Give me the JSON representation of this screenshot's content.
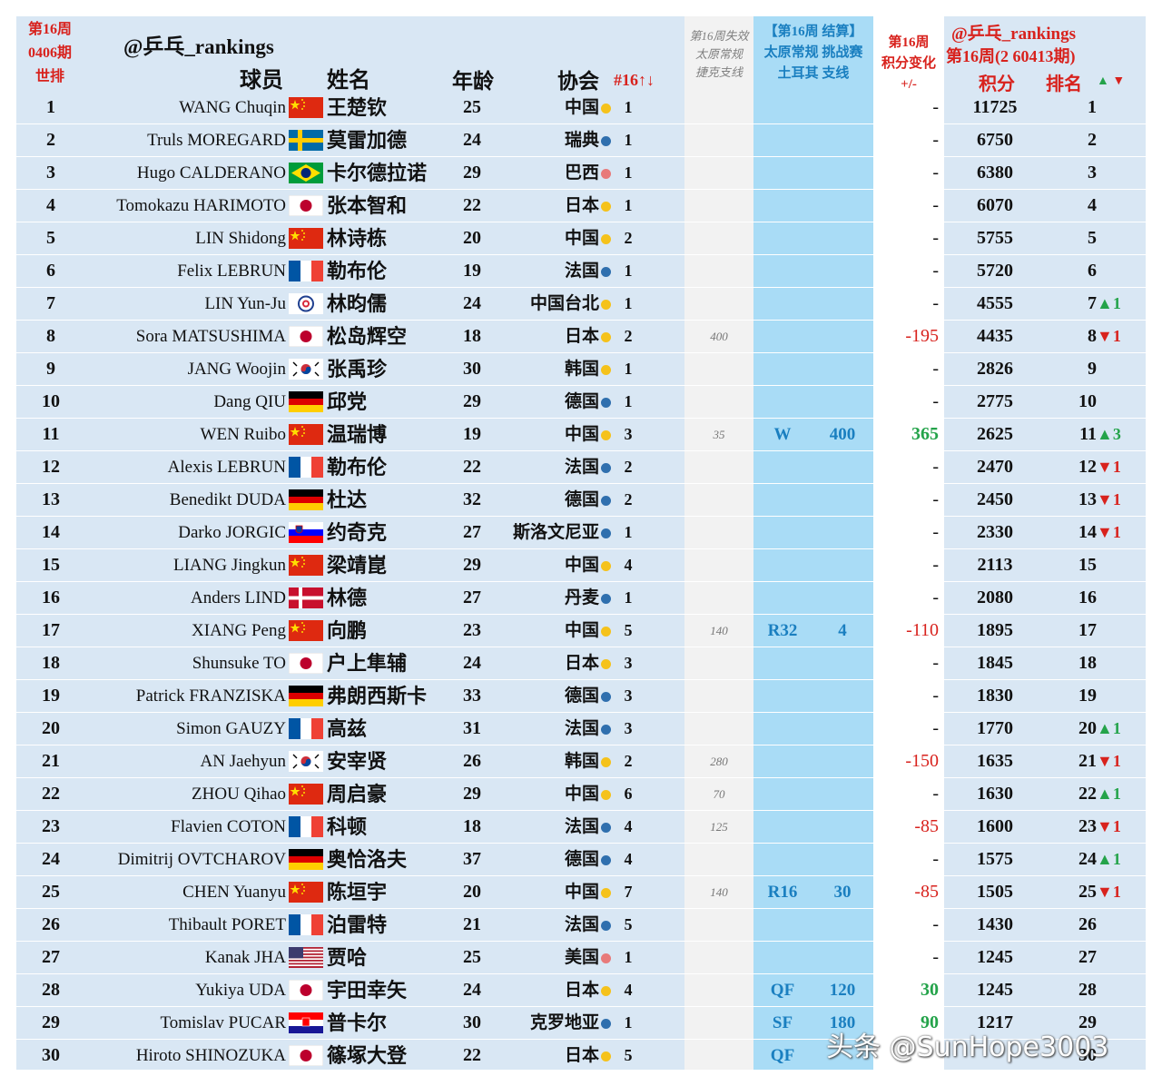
{
  "header": {
    "week_label": "第16周",
    "edition_label": "0406期",
    "world_rank_label": "世排",
    "brand": "@乒乓_rankings",
    "player_label": "球员",
    "name_label": "姓名",
    "age_label": "年龄",
    "assoc_label": "协会",
    "count_label": "#16↑↓",
    "lost_label_1": "第16周失效",
    "lost_label_2": "太原常规",
    "lost_label_3": "捷克支线",
    "taiyuan_label_1": "【第16周 结算】",
    "taiyuan_label_2": "太原常规 挑战赛",
    "taiyuan_label_3": "土耳其 支线",
    "change_label_1": "第16周",
    "change_label_2": "积分变化",
    "change_label_3": "+/-",
    "right_brand": "@乒乓_rankings",
    "right_edition": "第16周(2 60413期)",
    "points_label": "积分",
    "rank_label": "排名",
    "updown_label": "▲▼"
  },
  "colors": {
    "asia": "#f5c21b",
    "europe": "#2f6fae",
    "americas": "#e87a7a"
  },
  "rows": [
    {
      "rank": "1",
      "ename": "WANG Chuqin",
      "flag": "cn-flag-icon",
      "cname": "王楚钦",
      "age": "25",
      "assoc": "中国",
      "dot": "asia",
      "count": "1",
      "lost": "",
      "round": "",
      "tpts": "",
      "change": "-",
      "ctype": "",
      "points": "11725",
      "newrank": "1",
      "move": "",
      "mtype": ""
    },
    {
      "rank": "2",
      "ename": "Truls MOREGARD",
      "flag": "se-flag-icon",
      "cname": "莫雷加德",
      "age": "24",
      "assoc": "瑞典",
      "dot": "europe",
      "count": "1",
      "lost": "",
      "round": "",
      "tpts": "",
      "change": "-",
      "ctype": "",
      "points": "6750",
      "newrank": "2",
      "move": "",
      "mtype": ""
    },
    {
      "rank": "3",
      "ename": "Hugo CALDERANO",
      "flag": "br-flag-icon",
      "cname": "卡尔德拉诺",
      "age": "29",
      "assoc": "巴西",
      "dot": "americas",
      "count": "1",
      "lost": "",
      "round": "",
      "tpts": "",
      "change": "-",
      "ctype": "",
      "points": "6380",
      "newrank": "3",
      "move": "",
      "mtype": ""
    },
    {
      "rank": "4",
      "ename": "Tomokazu HARIMOTO",
      "flag": "jp-flag-icon",
      "cname": "张本智和",
      "age": "22",
      "assoc": "日本",
      "dot": "asia",
      "count": "1",
      "lost": "",
      "round": "",
      "tpts": "",
      "change": "-",
      "ctype": "",
      "points": "6070",
      "newrank": "4",
      "move": "",
      "mtype": ""
    },
    {
      "rank": "5",
      "ename": "LIN Shidong",
      "flag": "cn-flag-icon",
      "cname": "林诗栋",
      "age": "20",
      "assoc": "中国",
      "dot": "asia",
      "count": "2",
      "lost": "",
      "round": "",
      "tpts": "",
      "change": "-",
      "ctype": "",
      "points": "5755",
      "newrank": "5",
      "move": "",
      "mtype": ""
    },
    {
      "rank": "6",
      "ename": "Felix LEBRUN",
      "flag": "fr-flag-icon",
      "cname": "勒布伦",
      "age": "19",
      "assoc": "法国",
      "dot": "europe",
      "count": "1",
      "lost": "",
      "round": "",
      "tpts": "",
      "change": "-",
      "ctype": "",
      "points": "5720",
      "newrank": "6",
      "move": "",
      "mtype": ""
    },
    {
      "rank": "7",
      "ename": "LIN Yun-Ju",
      "flag": "tpe-flag-icon",
      "cname": "林昀儒",
      "age": "24",
      "assoc": "中国台北",
      "dot": "asia",
      "count": "1",
      "lost": "",
      "round": "",
      "tpts": "",
      "change": "-",
      "ctype": "",
      "points": "4555",
      "newrank": "7",
      "move": "▲1",
      "mtype": "up"
    },
    {
      "rank": "8",
      "ename": "Sora MATSUSHIMA",
      "flag": "jp-flag-icon",
      "cname": "松岛辉空",
      "age": "18",
      "assoc": "日本",
      "dot": "asia",
      "count": "2",
      "lost": "400",
      "round": "",
      "tpts": "",
      "change": "-195",
      "ctype": "neg",
      "points": "4435",
      "newrank": "8",
      "move": "▼1",
      "mtype": "down"
    },
    {
      "rank": "9",
      "ename": "JANG Woojin",
      "flag": "kr-flag-icon",
      "cname": "张禹珍",
      "age": "30",
      "assoc": "韩国",
      "dot": "asia",
      "count": "1",
      "lost": "",
      "round": "",
      "tpts": "",
      "change": "-",
      "ctype": "",
      "points": "2826",
      "newrank": "9",
      "move": "",
      "mtype": ""
    },
    {
      "rank": "10",
      "ename": "Dang QIU",
      "flag": "de-flag-icon",
      "cname": "邱党",
      "age": "29",
      "assoc": "德国",
      "dot": "europe",
      "count": "1",
      "lost": "",
      "round": "",
      "tpts": "",
      "change": "-",
      "ctype": "",
      "points": "2775",
      "newrank": "10",
      "move": "",
      "mtype": ""
    },
    {
      "rank": "11",
      "ename": "WEN Ruibo",
      "flag": "cn-flag-icon",
      "cname": "温瑞博",
      "age": "19",
      "assoc": "中国",
      "dot": "asia",
      "count": "3",
      "lost": "35",
      "round": "W",
      "tpts": "400",
      "change": "365",
      "ctype": "pos",
      "points": "2625",
      "newrank": "11",
      "move": "▲3",
      "mtype": "up"
    },
    {
      "rank": "12",
      "ename": "Alexis LEBRUN",
      "flag": "fr-flag-icon",
      "cname": "勒布伦",
      "age": "22",
      "assoc": "法国",
      "dot": "europe",
      "count": "2",
      "lost": "",
      "round": "",
      "tpts": "",
      "change": "-",
      "ctype": "",
      "points": "2470",
      "newrank": "12",
      "move": "▼1",
      "mtype": "down"
    },
    {
      "rank": "13",
      "ename": "Benedikt DUDA",
      "flag": "de-flag-icon",
      "cname": "杜达",
      "age": "32",
      "assoc": "德国",
      "dot": "europe",
      "count": "2",
      "lost": "",
      "round": "",
      "tpts": "",
      "change": "-",
      "ctype": "",
      "points": "2450",
      "newrank": "13",
      "move": "▼1",
      "mtype": "down"
    },
    {
      "rank": "14",
      "ename": "Darko JORGIC",
      "flag": "si-flag-icon",
      "cname": "约奇克",
      "age": "27",
      "assoc": "斯洛文尼亚",
      "dot": "europe",
      "count": "1",
      "lost": "",
      "round": "",
      "tpts": "",
      "change": "-",
      "ctype": "",
      "points": "2330",
      "newrank": "14",
      "move": "▼1",
      "mtype": "down"
    },
    {
      "rank": "15",
      "ename": "LIANG Jingkun",
      "flag": "cn-flag-icon",
      "cname": "梁靖崑",
      "age": "29",
      "assoc": "中国",
      "dot": "asia",
      "count": "4",
      "lost": "",
      "round": "",
      "tpts": "",
      "change": "-",
      "ctype": "",
      "points": "2113",
      "newrank": "15",
      "move": "",
      "mtype": ""
    },
    {
      "rank": "16",
      "ename": "Anders LIND",
      "flag": "dk-flag-icon",
      "cname": "林德",
      "age": "27",
      "assoc": "丹麦",
      "dot": "europe",
      "count": "1",
      "lost": "",
      "round": "",
      "tpts": "",
      "change": "-",
      "ctype": "",
      "points": "2080",
      "newrank": "16",
      "move": "",
      "mtype": ""
    },
    {
      "rank": "17",
      "ename": "XIANG Peng",
      "flag": "cn-flag-icon",
      "cname": "向鹏",
      "age": "23",
      "assoc": "中国",
      "dot": "asia",
      "count": "5",
      "lost": "140",
      "round": "R32",
      "tpts": "4",
      "change": "-110",
      "ctype": "neg",
      "points": "1895",
      "newrank": "17",
      "move": "",
      "mtype": ""
    },
    {
      "rank": "18",
      "ename": "Shunsuke TO",
      "flag": "jp-flag-icon",
      "cname": "户上隼辅",
      "age": "24",
      "assoc": "日本",
      "dot": "asia",
      "count": "3",
      "lost": "",
      "round": "",
      "tpts": "",
      "change": "-",
      "ctype": "",
      "points": "1845",
      "newrank": "18",
      "move": "",
      "mtype": ""
    },
    {
      "rank": "19",
      "ename": "Patrick FRANZISKA",
      "flag": "de-flag-icon",
      "cname": "弗朗西斯卡",
      "age": "33",
      "assoc": "德国",
      "dot": "europe",
      "count": "3",
      "lost": "",
      "round": "",
      "tpts": "",
      "change": "-",
      "ctype": "",
      "points": "1830",
      "newrank": "19",
      "move": "",
      "mtype": ""
    },
    {
      "rank": "20",
      "ename": "Simon GAUZY",
      "flag": "fr-flag-icon",
      "cname": "高兹",
      "age": "31",
      "assoc": "法国",
      "dot": "europe",
      "count": "3",
      "lost": "",
      "round": "",
      "tpts": "",
      "change": "-",
      "ctype": "",
      "points": "1770",
      "newrank": "20",
      "move": "▲1",
      "mtype": "up"
    },
    {
      "rank": "21",
      "ename": "AN Jaehyun",
      "flag": "kr-flag-icon",
      "cname": "安宰贤",
      "age": "26",
      "assoc": "韩国",
      "dot": "asia",
      "count": "2",
      "lost": "280",
      "round": "",
      "tpts": "",
      "change": "-150",
      "ctype": "neg",
      "points": "1635",
      "newrank": "21",
      "move": "▼1",
      "mtype": "down"
    },
    {
      "rank": "22",
      "ename": "ZHOU Qihao",
      "flag": "cn-flag-icon",
      "cname": "周启豪",
      "age": "29",
      "assoc": "中国",
      "dot": "asia",
      "count": "6",
      "lost": "70",
      "round": "",
      "tpts": "",
      "change": "-",
      "ctype": "",
      "points": "1630",
      "newrank": "22",
      "move": "▲1",
      "mtype": "up"
    },
    {
      "rank": "23",
      "ename": "Flavien COTON",
      "flag": "fr-flag-icon",
      "cname": "科顿",
      "age": "18",
      "assoc": "法国",
      "dot": "europe",
      "count": "4",
      "lost": "125",
      "round": "",
      "tpts": "",
      "change": "-85",
      "ctype": "neg",
      "points": "1600",
      "newrank": "23",
      "move": "▼1",
      "mtype": "down"
    },
    {
      "rank": "24",
      "ename": "Dimitrij OVTCHAROV",
      "flag": "de-flag-icon",
      "cname": "奥恰洛夫",
      "age": "37",
      "assoc": "德国",
      "dot": "europe",
      "count": "4",
      "lost": "",
      "round": "",
      "tpts": "",
      "change": "-",
      "ctype": "",
      "points": "1575",
      "newrank": "24",
      "move": "▲1",
      "mtype": "up"
    },
    {
      "rank": "25",
      "ename": "CHEN Yuanyu",
      "flag": "cn-flag-icon",
      "cname": "陈垣宇",
      "age": "20",
      "assoc": "中国",
      "dot": "asia",
      "count": "7",
      "lost": "140",
      "round": "R16",
      "tpts": "30",
      "change": "-85",
      "ctype": "neg",
      "points": "1505",
      "newrank": "25",
      "move": "▼1",
      "mtype": "down"
    },
    {
      "rank": "26",
      "ename": "Thibault PORET",
      "flag": "fr-flag-icon",
      "cname": "泊雷特",
      "age": "21",
      "assoc": "法国",
      "dot": "europe",
      "count": "5",
      "lost": "",
      "round": "",
      "tpts": "",
      "change": "-",
      "ctype": "",
      "points": "1430",
      "newrank": "26",
      "move": "",
      "mtype": ""
    },
    {
      "rank": "27",
      "ename": "Kanak JHA",
      "flag": "us-flag-icon",
      "cname": "贾哈",
      "age": "25",
      "assoc": "美国",
      "dot": "americas",
      "count": "1",
      "lost": "",
      "round": "",
      "tpts": "",
      "change": "-",
      "ctype": "",
      "points": "1245",
      "newrank": "27",
      "move": "",
      "mtype": ""
    },
    {
      "rank": "28",
      "ename": "Yukiya UDA",
      "flag": "jp-flag-icon",
      "cname": "宇田幸矢",
      "age": "24",
      "assoc": "日本",
      "dot": "asia",
      "count": "4",
      "lost": "",
      "round": "QF",
      "tpts": "120",
      "change": "30",
      "ctype": "pos",
      "points": "1245",
      "newrank": "28",
      "move": "",
      "mtype": ""
    },
    {
      "rank": "29",
      "ename": "Tomislav PUCAR",
      "flag": "hr-flag-icon",
      "cname": "普卡尔",
      "age": "30",
      "assoc": "克罗地亚",
      "dot": "europe",
      "count": "1",
      "lost": "",
      "round": "SF",
      "tpts": "180",
      "change": "90",
      "ctype": "pos",
      "points": "1217",
      "newrank": "29",
      "move": "",
      "mtype": ""
    },
    {
      "rank": "30",
      "ename": "Hiroto SHINOZUKA",
      "flag": "jp-flag-icon",
      "cname": "篠塚大登",
      "age": "22",
      "assoc": "日本",
      "dot": "asia",
      "count": "5",
      "lost": "",
      "round": "QF",
      "tpts": "",
      "change": "",
      "ctype": "pos",
      "points": "",
      "newrank": "30",
      "move": "",
      "mtype": ""
    }
  ],
  "watermark": "头条 @SunHope3003"
}
